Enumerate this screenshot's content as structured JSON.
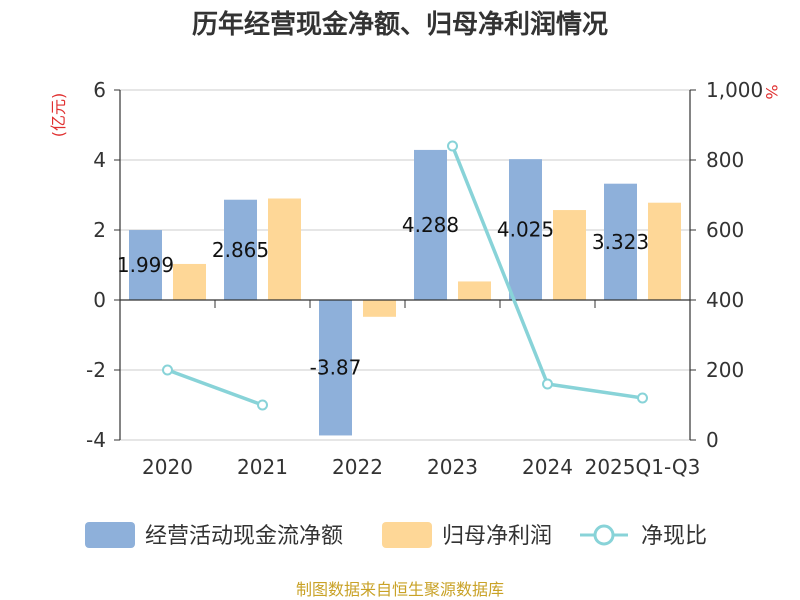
{
  "title": "历年经营现金净额、归母净利润情况",
  "source": "制图数据来自恒生聚源数据库",
  "colors": {
    "cash": "#8eb0da",
    "profit": "#fed797",
    "ratio": "#88d3d8",
    "unit": "#e03030",
    "source": "#c9a227"
  },
  "chart_data": {
    "type": "bar",
    "categories": [
      "2020",
      "2021",
      "2022",
      "2023",
      "2024",
      "2025Q1-Q3"
    ],
    "series": [
      {
        "name": "经营活动现金流净额",
        "type": "bar",
        "axis": "left",
        "values": [
          1.999,
          2.865,
          -3.87,
          4.288,
          4.025,
          3.323
        ]
      },
      {
        "name": "归母净利润",
        "type": "bar",
        "axis": "left",
        "values": [
          1.03,
          2.9,
          -0.48,
          0.53,
          2.57,
          2.78
        ]
      },
      {
        "name": "净现比",
        "type": "line",
        "axis": "right",
        "values": [
          200,
          100,
          null,
          840,
          160,
          120
        ]
      }
    ],
    "data_labels": [
      "1.999",
      "2.865",
      "-3.87",
      "4.288",
      "4.025",
      "3.323"
    ],
    "y_left": {
      "label": "(亿元)",
      "min": -4,
      "max": 6,
      "ticks": [
        "-4",
        "-2",
        "0",
        "2",
        "4",
        "6"
      ]
    },
    "y_right": {
      "label": "%",
      "min": 0,
      "max": 1000,
      "ticks": [
        "0",
        "200",
        "400",
        "600",
        "800",
        "1,000"
      ]
    },
    "grid": true,
    "legend": "bottom"
  }
}
